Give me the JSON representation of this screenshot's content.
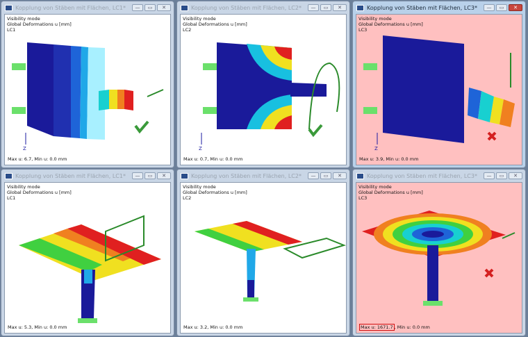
{
  "colors": {
    "ok": "#3a9a3a",
    "fail": "#d42020",
    "fail_bg": "#ffc0c0",
    "plate": "#1a1a9a"
  },
  "panels": [
    {
      "title": "Kopplung von Stäben mit Flächen, LC1*",
      "mode": "Visibility mode",
      "result": "Global Deformations u [mm]",
      "lc": "LC1",
      "max_label": "Max u: 6.7",
      "min_label": "Min u: 0.0 mm",
      "status": "ok",
      "axis": "Z"
    },
    {
      "title": "Kopplung von Stäben mit Flächen, LC2*",
      "mode": "Visibility mode",
      "result": "Global Deformations u [mm]",
      "lc": "LC2",
      "max_label": "Max u: 0.7",
      "min_label": "Min u: 0.0 mm",
      "status": "ok",
      "axis": "Z"
    },
    {
      "title": "Kopplung von Stäben mit Flächen, LC3*",
      "mode": "Visibility mode",
      "result": "Global Deformations u [mm]",
      "lc": "LC3",
      "max_label": "Max u: 3.9",
      "min_label": "Min u: 0.0 mm",
      "status": "fail",
      "axis": "Z"
    },
    {
      "title": "Kopplung von Stäben mit Flächen, LC1*",
      "mode": "Visibility mode",
      "result": "Global Deformations u [mm]",
      "lc": "LC1",
      "max_label": "Max u: 5.3",
      "min_label": "Min u: 0.0 mm",
      "status": "none"
    },
    {
      "title": "Kopplung von Stäben mit Flächen, LC2*",
      "mode": "Visibility mode",
      "result": "Global Deformations u [mm]",
      "lc": "LC2",
      "max_label": "Max u: 3.2",
      "min_label": "Min u: 0.0 mm",
      "status": "none"
    },
    {
      "title": "Kopplung von Stäben mit Flächen, LC3*",
      "mode": "Visibility mode",
      "result": "Global Deformations u [mm]",
      "lc": "LC3",
      "max_label": "Max u: 1671.7",
      "min_label": "Min u: 0.0 mm",
      "status": "fail"
    }
  ],
  "window_buttons": {
    "minimize": "—",
    "restore": "▭",
    "close": "✕"
  }
}
